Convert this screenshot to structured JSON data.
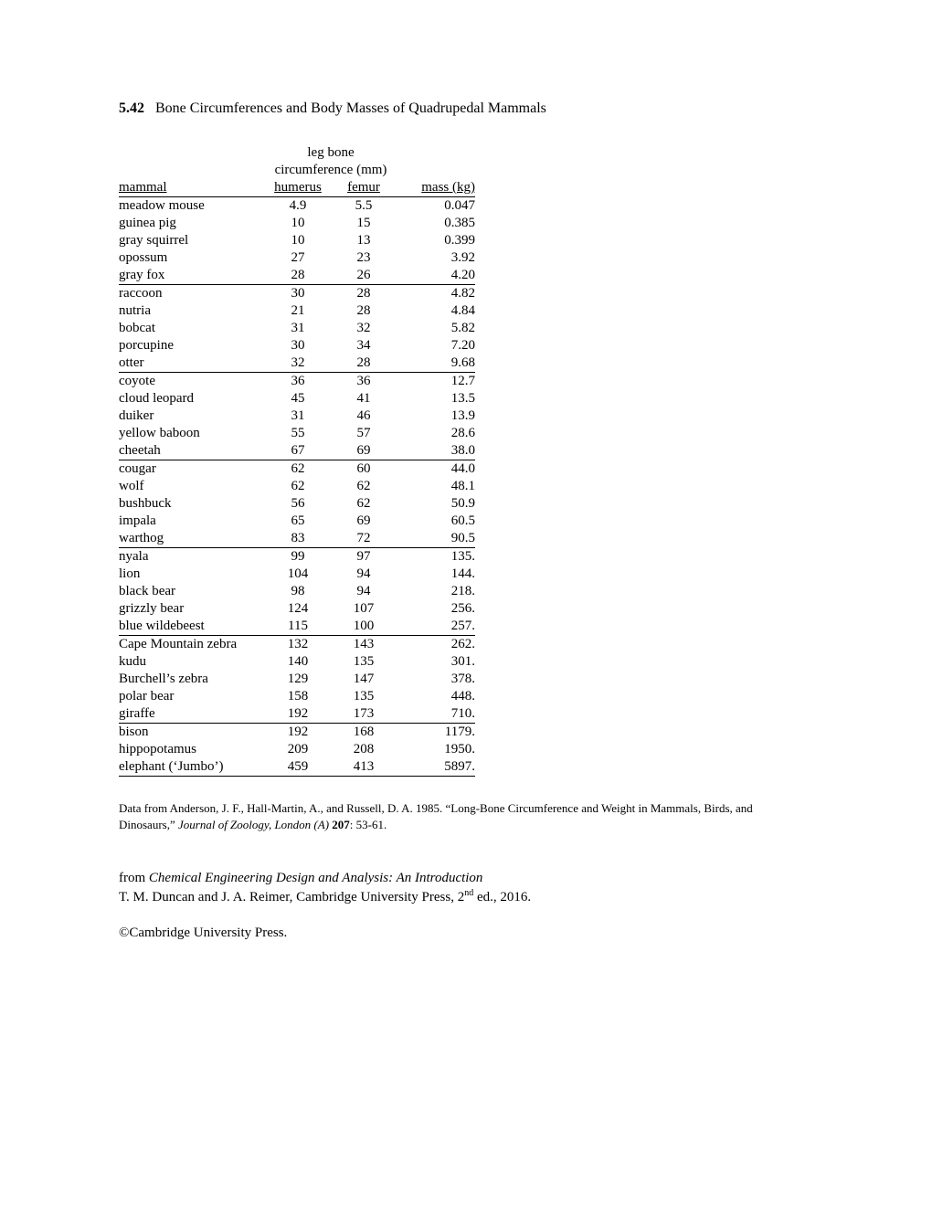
{
  "title": {
    "number": "5.42",
    "text": "Bone Circumferences and Body Masses of Quadrupedal Mammals"
  },
  "table": {
    "spanning_header_line1": "leg bone",
    "spanning_header_line2": "circumference (mm)",
    "columns": {
      "mammal": "mammal",
      "humerus": "humerus",
      "femur": "femur",
      "mass": "mass (kg)"
    },
    "groups": [
      [
        {
          "mammal": "meadow mouse",
          "humerus": "4.9",
          "femur": "5.5",
          "mass": "0.047"
        },
        {
          "mammal": "guinea pig",
          "humerus": "10",
          "femur": "15",
          "mass": "0.385"
        },
        {
          "mammal": "gray squirrel",
          "humerus": "10",
          "femur": "13",
          "mass": "0.399"
        },
        {
          "mammal": "opossum",
          "humerus": "27",
          "femur": "23",
          "mass": "3.92"
        },
        {
          "mammal": "gray fox",
          "humerus": "28",
          "femur": "26",
          "mass": "4.20"
        }
      ],
      [
        {
          "mammal": "raccoon",
          "humerus": "30",
          "femur": "28",
          "mass": "4.82"
        },
        {
          "mammal": "nutria",
          "humerus": "21",
          "femur": "28",
          "mass": "4.84"
        },
        {
          "mammal": "bobcat",
          "humerus": "31",
          "femur": "32",
          "mass": "5.82"
        },
        {
          "mammal": "porcupine",
          "humerus": "30",
          "femur": "34",
          "mass": "7.20"
        },
        {
          "mammal": "otter",
          "humerus": "32",
          "femur": "28",
          "mass": "9.68"
        }
      ],
      [
        {
          "mammal": "coyote",
          "humerus": "36",
          "femur": "36",
          "mass": "12.7"
        },
        {
          "mammal": "cloud leopard",
          "humerus": "45",
          "femur": "41",
          "mass": "13.5"
        },
        {
          "mammal": "duiker",
          "humerus": "31",
          "femur": "46",
          "mass": "13.9"
        },
        {
          "mammal": "yellow baboon",
          "humerus": "55",
          "femur": "57",
          "mass": "28.6"
        },
        {
          "mammal": "cheetah",
          "humerus": "67",
          "femur": "69",
          "mass": "38.0"
        }
      ],
      [
        {
          "mammal": "cougar",
          "humerus": "62",
          "femur": "60",
          "mass": "44.0"
        },
        {
          "mammal": "wolf",
          "humerus": "62",
          "femur": "62",
          "mass": "48.1"
        },
        {
          "mammal": "bushbuck",
          "humerus": "56",
          "femur": "62",
          "mass": "50.9"
        },
        {
          "mammal": "impala",
          "humerus": "65",
          "femur": "69",
          "mass": "60.5"
        },
        {
          "mammal": "warthog",
          "humerus": "83",
          "femur": "72",
          "mass": "90.5"
        }
      ],
      [
        {
          "mammal": "nyala",
          "humerus": "99",
          "femur": "97",
          "mass": "135."
        },
        {
          "mammal": "lion",
          "humerus": "104",
          "femur": "94",
          "mass": "144."
        },
        {
          "mammal": "black bear",
          "humerus": "98",
          "femur": "94",
          "mass": "218."
        },
        {
          "mammal": "grizzly bear",
          "humerus": "124",
          "femur": "107",
          "mass": "256."
        },
        {
          "mammal": "blue wildebeest",
          "humerus": "115",
          "femur": "100",
          "mass": "257."
        }
      ],
      [
        {
          "mammal": "Cape Mountain zebra",
          "humerus": "132",
          "femur": "143",
          "mass": "262."
        },
        {
          "mammal": "kudu",
          "humerus": "140",
          "femur": "135",
          "mass": "301."
        },
        {
          "mammal": "Burchell’s zebra",
          "humerus": "129",
          "femur": "147",
          "mass": "378."
        },
        {
          "mammal": "polar bear",
          "humerus": "158",
          "femur": "135",
          "mass": "448."
        },
        {
          "mammal": "giraffe",
          "humerus": "192",
          "femur": "173",
          "mass": "710."
        }
      ],
      [
        {
          "mammal": "bison",
          "humerus": "192",
          "femur": "168",
          "mass": "1179."
        },
        {
          "mammal": "hippopotamus",
          "humerus": "209",
          "femur": "208",
          "mass": "1950."
        },
        {
          "mammal": "elephant (‘Jumbo’)",
          "humerus": "459",
          "femur": "413",
          "mass": "5897."
        }
      ]
    ]
  },
  "citation": {
    "prefix": "Data from Anderson, J. F., Hall-Martin, A., and Russell, D. A. 1985. “Long-Bone Circumference and Weight in Mammals, Birds, and Dinosaurs,” ",
    "journal": "Journal of Zoology, London (A)",
    "volume": " 207",
    "pages": ": 53-61."
  },
  "source": {
    "from": "from ",
    "book": "Chemical Engineering Design and Analysis:  An Introduction",
    "line2a": "T. M. Duncan and J. A. Reimer, Cambridge University Press, 2",
    "sup": "nd",
    "line2b": " ed., 2016."
  },
  "copyright": "©Cambridge University Press."
}
